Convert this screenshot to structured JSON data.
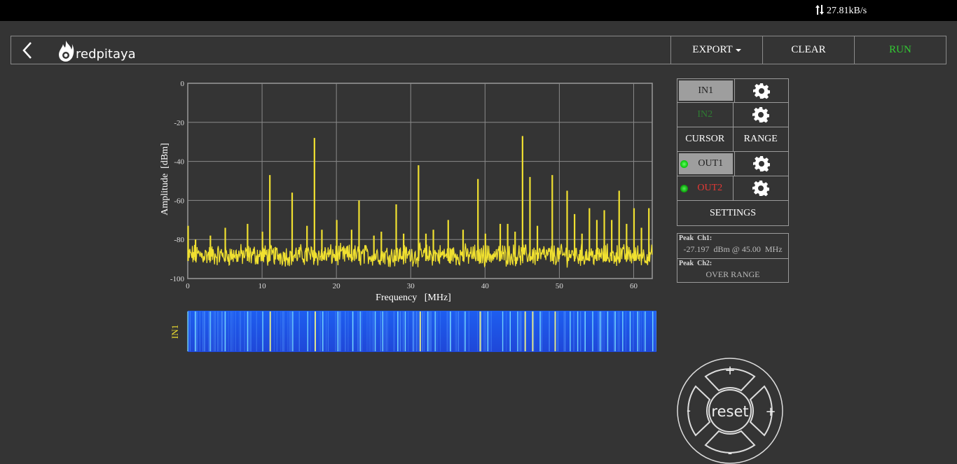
{
  "status": {
    "net_speed": "27.81kB/s"
  },
  "toolbar": {
    "logo_text": "redpitaya",
    "export_label": "EXPORT",
    "clear_label": "CLEAR",
    "run_label": "RUN"
  },
  "colors": {
    "background": "#343434",
    "trace": "#f0e030",
    "run_green": "#33cc33",
    "in2_green": "#2e7d32",
    "out2_red": "#e53935",
    "led_green": "#22dd22"
  },
  "panel": {
    "in1_label": "IN1",
    "in2_label": "IN2",
    "cursor_label": "CURSOR",
    "range_label": "RANGE",
    "out1_label": "OUT1",
    "out2_label": "OUT2",
    "settings_label": "SETTINGS"
  },
  "peaks": {
    "ch1_label": "Peak  Ch1:",
    "ch1_value": "-27.197  dBm @ 45.00  MHz",
    "ch2_label": "Peak  Ch2:",
    "ch2_value": "OVER RANGE"
  },
  "waterfall": {
    "channel_label": "IN1"
  },
  "dpad": {
    "center_label": "reset",
    "up": "+",
    "down": "-",
    "left": "-",
    "right": "+"
  },
  "chart_data": {
    "type": "line",
    "xlabel": "Frequency   [MHz]",
    "ylabel": "Amplitude  [dBm]",
    "xlim": [
      0,
      62.5
    ],
    "ylim": [
      -100,
      0
    ],
    "x_ticks": [
      0,
      10,
      20,
      30,
      40,
      50,
      60
    ],
    "y_ticks": [
      0,
      -20,
      -40,
      -60,
      -80,
      -100
    ],
    "grid": true,
    "noise_floor": -88,
    "series": [
      {
        "color": "#f0e030",
        "peaks_x": [
          0,
          1,
          3,
          5,
          8,
          10,
          11,
          14,
          16,
          17,
          18,
          20,
          22,
          23,
          25,
          26,
          28,
          29,
          31,
          32,
          33,
          35,
          37,
          39,
          40,
          42,
          43,
          44,
          45,
          46,
          47,
          49,
          51,
          52,
          53,
          54,
          55,
          56,
          57,
          58,
          59,
          60,
          61,
          62
        ],
        "peaks_y": [
          -73,
          -80,
          -78,
          -74,
          -72,
          -76,
          -47,
          -56,
          -73,
          -28,
          -75,
          -70,
          -75,
          -60,
          -78,
          -76,
          -62,
          -77,
          -42,
          -77,
          -75,
          -70,
          -75,
          -49,
          -77,
          -72,
          -72,
          -76,
          -27,
          -48,
          -73,
          -47,
          -55,
          -67,
          -77,
          -64,
          -70,
          -65,
          -70,
          -55,
          -72,
          -64,
          -74,
          -64
        ]
      }
    ]
  }
}
